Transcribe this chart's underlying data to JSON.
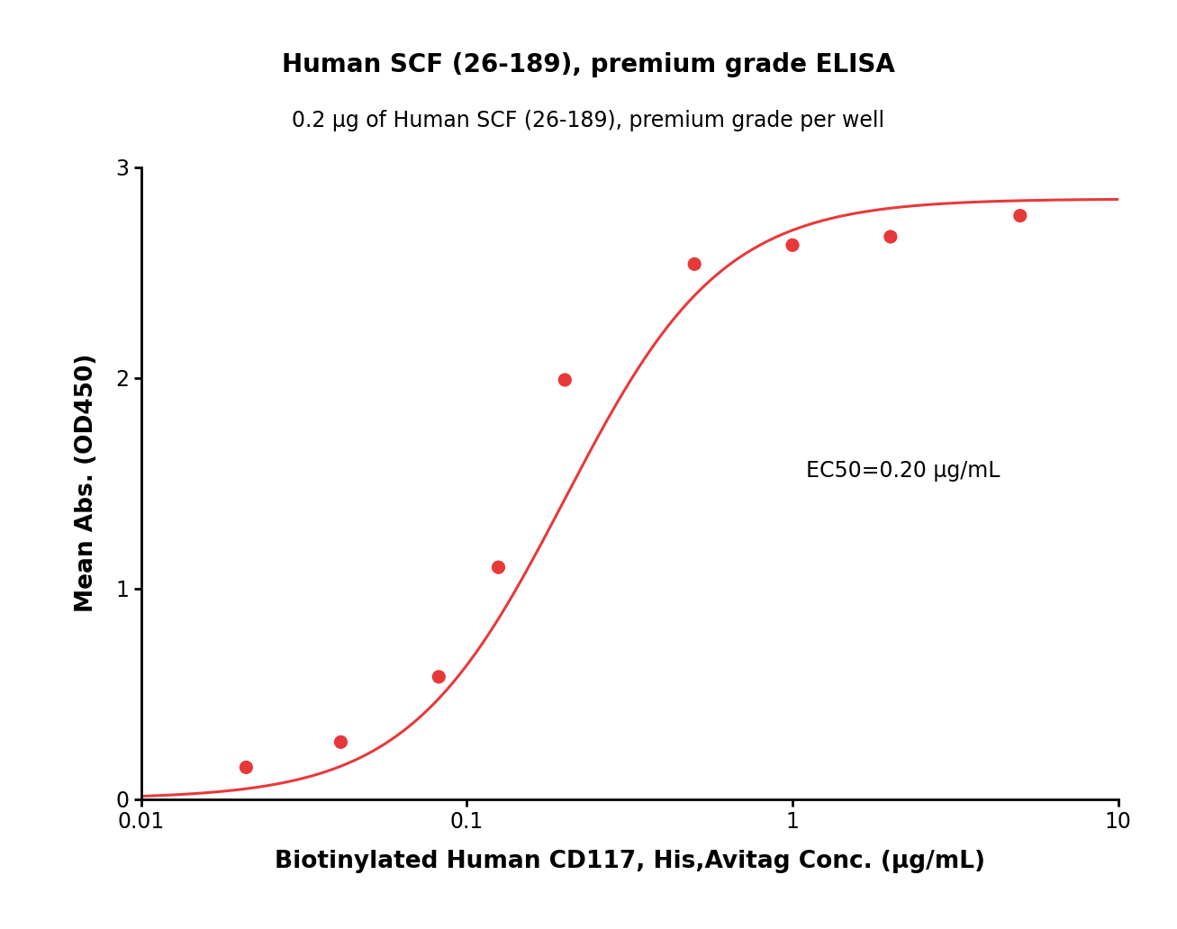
{
  "title": "Human SCF (26-189), premium grade ELISA",
  "subtitle": "0.2 μg of Human SCF (26-189), premium grade per well",
  "xlabel": "Biotinylated Human CD117, His,Avitag Conc. (μg/mL)",
  "ylabel": "Mean Abs. (OD450)",
  "ec50_text": "EC50=0.20 μg/mL",
  "xdata": [
    0.021,
    0.041,
    0.082,
    0.125,
    0.2,
    0.5,
    1.0,
    2.0,
    5.0
  ],
  "ydata": [
    0.15,
    0.27,
    0.58,
    1.1,
    1.99,
    2.54,
    2.63,
    2.67,
    2.77
  ],
  "xlim": [
    0.01,
    10
  ],
  "ylim": [
    0,
    3
  ],
  "yticks": [
    0,
    1,
    2,
    3
  ],
  "xticks": [
    0.01,
    0.1,
    1,
    10
  ],
  "xtick_labels": [
    "0.01",
    "0.1",
    "1",
    "10"
  ],
  "curve_color": "#e8393a",
  "dot_color": "#e8393a",
  "background_color": "#ffffff",
  "title_fontsize": 20,
  "subtitle_fontsize": 17,
  "label_fontsize": 19,
  "tick_fontsize": 17,
  "ec50_fontsize": 17,
  "dot_size": 120,
  "line_width": 2.2,
  "ec50_fixed": 0.2,
  "hill_fixed": 1.8,
  "bottom_fixed": 0.0,
  "top_fixed": 2.85
}
